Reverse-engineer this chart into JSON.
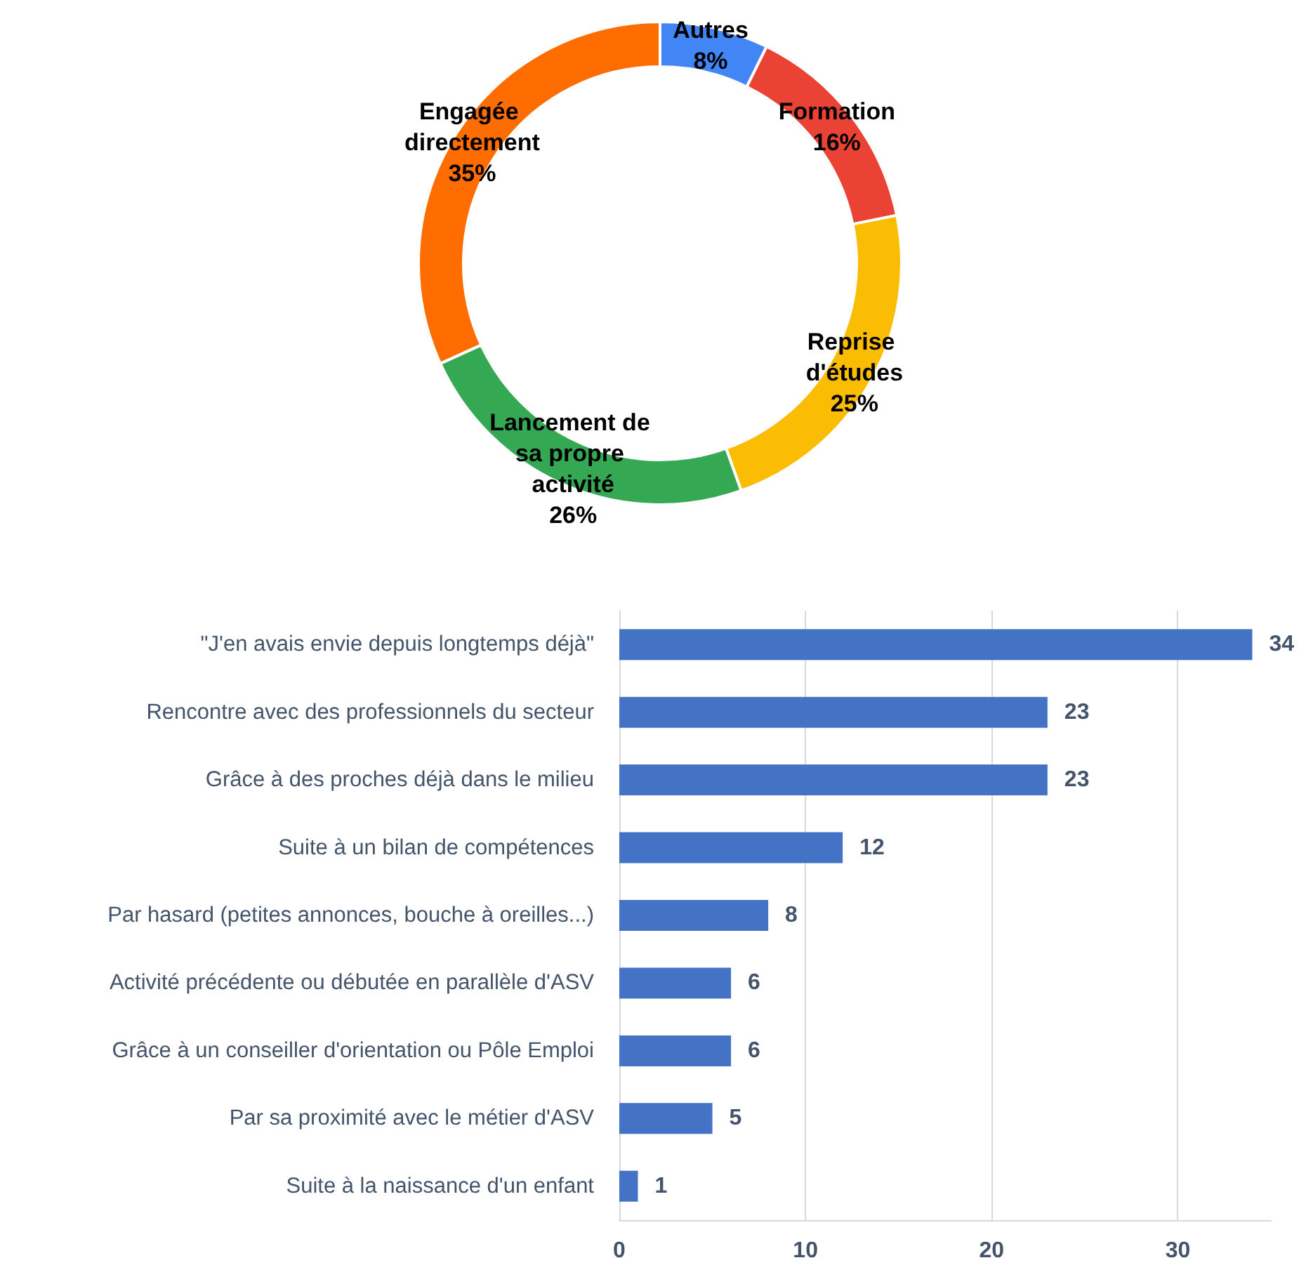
{
  "chart_data": [
    {
      "type": "donut",
      "categories": [
        "Autres",
        "Formation",
        "Reprise d'études",
        "Lancement de sa propre activité",
        "Engagée directement"
      ],
      "values": [
        8,
        16,
        25,
        26,
        35
      ],
      "value_labels": [
        "8%",
        "16%",
        "25%",
        "26%",
        "35%"
      ],
      "colors": [
        "#4285f4",
        "#ea4335",
        "#fbbc04",
        "#34a853",
        "#ff6d01"
      ],
      "legend": false
    },
    {
      "type": "bar",
      "orientation": "horizontal",
      "categories": [
        "\"J'en avais envie depuis longtemps déjà\"",
        "Rencontre avec des professionnels du secteur",
        "Grâce à des proches déjà dans le milieu",
        "Suite à un bilan de compétences",
        "Par hasard (petites annonces, bouche à oreilles...)",
        "Activité précédente ou débutée en parallèle d'ASV",
        "Grâce à un conseiller d'orientation ou Pôle Emploi",
        "Par sa proximité avec le métier d'ASV",
        "Suite à la naissance d'un enfant"
      ],
      "values": [
        34,
        23,
        23,
        12,
        8,
        6,
        6,
        5,
        1
      ],
      "color": "#4472c4",
      "xlim": [
        0,
        35
      ],
      "xticks": [
        0,
        10,
        20,
        30
      ],
      "grid": "x",
      "data_labels": true,
      "legend": false
    }
  ]
}
